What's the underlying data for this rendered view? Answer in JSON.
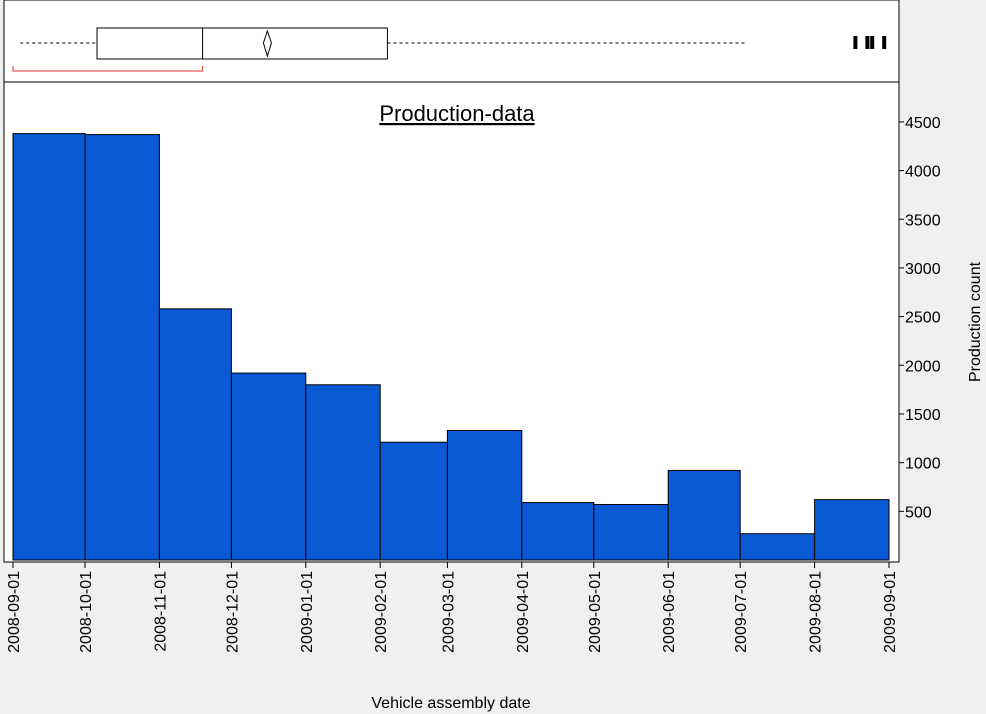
{
  "chart_data": {
    "type": "histogram",
    "title": "Production-data",
    "x_label": "Vehicle assembly date",
    "y_label": "Production count",
    "bins": [
      "2008-09-01",
      "2008-10-01",
      "2008-11-01",
      "2008-12-01",
      "2009-01-01",
      "2009-02-01",
      "2009-03-01",
      "2009-04-01",
      "2009-05-01",
      "2009-06-01",
      "2009-07-01",
      "2009-08-01",
      "2009-09-01"
    ],
    "values": [
      4380,
      4370,
      2580,
      1920,
      1800,
      1210,
      1330,
      590,
      570,
      920,
      270,
      620
    ],
    "color": "#0a5ad6",
    "xticks": [
      "2008-09-01",
      "2008-10-01",
      "2008-11-01",
      "2008-12-01",
      "2009-01-01",
      "2009-02-01",
      "2009-03-01",
      "2009-04-01",
      "2009-05-01",
      "2009-06-01",
      "2009-07-01",
      "2009-08-01",
      "2009-09-01"
    ],
    "ylim": [
      0,
      4910
    ],
    "yticks": [
      500,
      1000,
      1500,
      2000,
      2500,
      3000,
      3500,
      4000,
      4500
    ],
    "boxplot": {
      "whisker_low": "2008-09-04",
      "q1": "2008-10-06",
      "median": "2008-11-19",
      "mean": "2008-12-16",
      "q3": "2009-02-04",
      "whisker_high": "2009-07-04",
      "outliers": [
        "2009-08-18",
        "2009-08-23",
        "2009-08-25",
        "2009-08-30"
      ],
      "shortest_half": [
        "2008-09-01",
        "2008-11-19"
      ],
      "shortest_half_color": "#e03030"
    }
  }
}
